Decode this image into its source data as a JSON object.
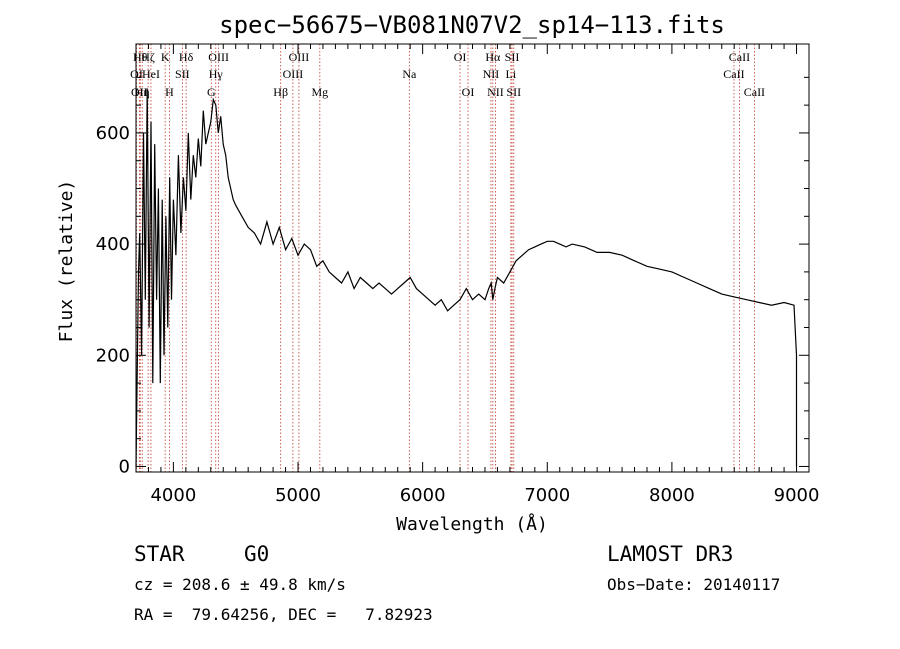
{
  "chart_data": {
    "type": "line",
    "title": "spec−56675−VB081N07V2_sp14−113.fits",
    "xlabel": "Wavelength (Å)",
    "ylabel": "Flux (relative)",
    "xlim": [
      3700,
      9100
    ],
    "ylim": [
      -10,
      760
    ],
    "x_ticks": [
      {
        "value": 4000,
        "label": "4000"
      },
      {
        "value": 5000,
        "label": "5000"
      },
      {
        "value": 6000,
        "label": "6000"
      },
      {
        "value": 7000,
        "label": "7000"
      },
      {
        "value": 8000,
        "label": "8000"
      },
      {
        "value": 9000,
        "label": "9000"
      }
    ],
    "y_ticks": [
      {
        "value": 0,
        "label": "0"
      },
      {
        "value": 200,
        "label": "200"
      },
      {
        "value": 400,
        "label": "400"
      },
      {
        "value": 600,
        "label": "600"
      }
    ],
    "series": [
      {
        "name": "spectrum",
        "x": [
          3700,
          3720,
          3730,
          3745,
          3760,
          3775,
          3790,
          3805,
          3820,
          3835,
          3850,
          3865,
          3880,
          3895,
          3910,
          3925,
          3940,
          3955,
          3970,
          3985,
          4000,
          4020,
          4040,
          4060,
          4080,
          4100,
          4120,
          4140,
          4160,
          4180,
          4200,
          4220,
          4240,
          4260,
          4280,
          4300,
          4320,
          4340,
          4360,
          4380,
          4400,
          4420,
          4440,
          4460,
          4480,
          4500,
          4550,
          4600,
          4650,
          4700,
          4750,
          4800,
          4850,
          4900,
          4950,
          5000,
          5050,
          5100,
          5150,
          5200,
          5250,
          5300,
          5350,
          5400,
          5450,
          5500,
          5550,
          5600,
          5650,
          5700,
          5750,
          5800,
          5850,
          5900,
          5950,
          6000,
          6050,
          6100,
          6150,
          6200,
          6250,
          6300,
          6350,
          6400,
          6450,
          6500,
          6530,
          6550,
          6563,
          6580,
          6600,
          6650,
          6700,
          6750,
          6800,
          6850,
          6900,
          6950,
          7000,
          7050,
          7100,
          7150,
          7200,
          7300,
          7400,
          7500,
          7600,
          7700,
          7800,
          7900,
          8000,
          8100,
          8200,
          8300,
          8400,
          8500,
          8600,
          8700,
          8800,
          8900,
          8980,
          9000,
          9000
        ],
        "y": [
          0,
          350,
          420,
          200,
          600,
          300,
          680,
          250,
          620,
          150,
          580,
          300,
          500,
          150,
          480,
          200,
          450,
          250,
          520,
          300,
          480,
          380,
          560,
          420,
          520,
          460,
          600,
          480,
          560,
          520,
          590,
          540,
          640,
          580,
          600,
          620,
          660,
          650,
          600,
          630,
          580,
          560,
          520,
          500,
          480,
          470,
          450,
          430,
          420,
          400,
          440,
          400,
          430,
          390,
          410,
          380,
          400,
          390,
          360,
          370,
          350,
          340,
          330,
          350,
          320,
          340,
          330,
          320,
          330,
          320,
          310,
          320,
          330,
          340,
          320,
          310,
          300,
          290,
          300,
          280,
          290,
          300,
          320,
          300,
          310,
          300,
          320,
          330,
          300,
          320,
          340,
          330,
          350,
          370,
          380,
          390,
          395,
          400,
          405,
          405,
          400,
          395,
          400,
          395,
          385,
          385,
          380,
          370,
          360,
          355,
          350,
          340,
          330,
          320,
          310,
          305,
          300,
          295,
          290,
          295,
          290,
          200,
          0
        ]
      }
    ],
    "line_markers": [
      {
        "name": "OII",
        "value": 3727,
        "row": 3
      },
      {
        "name": "Hθ",
        "value": 3734,
        "row": 1
      },
      {
        "name": "Hη",
        "value": 3750,
        "row": 3
      },
      {
        "name": "Hζ",
        "value": 3797,
        "row": 1
      },
      {
        "name": "OI",
        "value": 3704,
        "row": 2
      },
      {
        "name": "HeI",
        "value": 3820,
        "row": 2
      },
      {
        "name": "K",
        "value": 3934,
        "row": 1
      },
      {
        "name": "SII",
        "value": 4072,
        "row": 2
      },
      {
        "name": "H",
        "value": 3968,
        "row": 3
      },
      {
        "name": "Hδ",
        "value": 4102,
        "row": 1
      },
      {
        "name": "OIII",
        "value": 4363,
        "row": 1
      },
      {
        "name": "Hγ",
        "value": 4340,
        "row": 2
      },
      {
        "name": "G",
        "value": 4304,
        "row": 3
      },
      {
        "name": "Hβ",
        "value": 4861,
        "row": 3
      },
      {
        "name": "OIII",
        "value": 5007,
        "row": 1
      },
      {
        "name": "OIII",
        "value": 4959,
        "row": 2
      },
      {
        "name": "Mg",
        "value": 5175,
        "row": 3
      },
      {
        "name": "Na",
        "value": 5893,
        "row": 2
      },
      {
        "name": "OI",
        "value": 6300,
        "row": 1
      },
      {
        "name": "OI",
        "value": 6364,
        "row": 3
      },
      {
        "name": "Hα",
        "value": 6563,
        "row": 1
      },
      {
        "name": "NII",
        "value": 6548,
        "row": 2
      },
      {
        "name": "NII",
        "value": 6584,
        "row": 3
      },
      {
        "name": "SII",
        "value": 6717,
        "row": 1
      },
      {
        "name": "Li",
        "value": 6708,
        "row": 2
      },
      {
        "name": "SII",
        "value": 6731,
        "row": 3
      },
      {
        "name": "CaII",
        "value": 8542,
        "row": 1
      },
      {
        "name": "CaII",
        "value": 8498,
        "row": 2
      },
      {
        "name": "CaII",
        "value": 8662,
        "row": 3
      }
    ],
    "grid": false
  },
  "info": {
    "object_type": "STAR",
    "subclass": "G0",
    "survey": "LAMOST DR3",
    "cz": "cz = 208.6 ± 49.8 km/s",
    "obs_date": "Obs−Date: 20140117",
    "coords": "RA =  79.64256, DEC =   7.82923"
  }
}
